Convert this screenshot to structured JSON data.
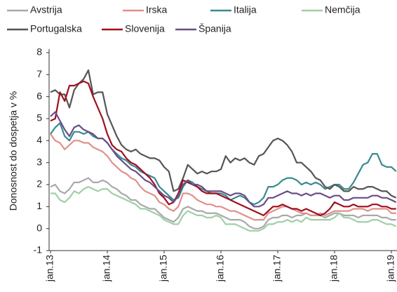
{
  "chart_data": {
    "type": "line",
    "y_label": "Donosnost do dospetja v %",
    "categories": [
      "jan.13",
      null,
      null,
      null,
      null,
      null,
      null,
      null,
      null,
      null,
      null,
      null,
      "jan.14",
      null,
      null,
      null,
      null,
      null,
      null,
      null,
      null,
      null,
      null,
      null,
      "jan.15",
      null,
      null,
      null,
      null,
      null,
      null,
      null,
      null,
      null,
      null,
      null,
      "jan.16",
      null,
      null,
      null,
      null,
      null,
      null,
      null,
      null,
      null,
      null,
      null,
      "jan.17",
      null,
      null,
      null,
      null,
      null,
      null,
      null,
      null,
      null,
      null,
      null,
      "jan.18",
      null,
      null,
      null,
      null,
      null,
      null,
      null,
      null,
      null,
      null,
      null,
      "jan.19",
      null
    ],
    "ylim": [
      -1,
      8
    ],
    "yticks": [
      -1,
      0,
      1,
      2,
      3,
      4,
      5,
      6,
      7,
      8
    ],
    "series": [
      {
        "name": "Avstrija",
        "color": "#a9a9a9",
        "values": [
          1.9,
          2.0,
          1.7,
          1.6,
          1.8,
          2.1,
          2.1,
          2.2,
          2.3,
          2.1,
          2.1,
          2.2,
          2.1,
          1.9,
          1.8,
          1.6,
          1.5,
          1.3,
          1.3,
          1.1,
          1.0,
          0.9,
          0.9,
          0.7,
          0.5,
          0.4,
          0.3,
          0.5,
          0.9,
          1.0,
          0.9,
          0.8,
          0.8,
          0.7,
          0.7,
          0.7,
          0.6,
          0.5,
          0.4,
          0.4,
          0.4,
          0.3,
          0.1,
          0.0,
          0.0,
          0.1,
          0.4,
          0.5,
          0.5,
          0.6,
          0.6,
          0.5,
          0.6,
          0.6,
          0.7,
          0.6,
          0.6,
          0.6,
          0.5,
          0.6,
          0.7,
          0.7,
          0.6,
          0.6,
          0.6,
          0.5,
          0.6,
          0.6,
          0.6,
          0.6,
          0.5,
          0.5,
          0.4,
          0.4
        ]
      },
      {
        "name": "Irska",
        "color": "#e0908a",
        "values": [
          4.3,
          4.0,
          3.9,
          3.6,
          3.8,
          4.0,
          4.0,
          3.9,
          3.9,
          3.7,
          3.6,
          3.5,
          3.3,
          3.0,
          2.8,
          2.6,
          2.5,
          2.3,
          2.2,
          1.9,
          1.7,
          1.6,
          1.5,
          1.2,
          1.1,
          0.9,
          0.8,
          1.0,
          1.6,
          1.6,
          1.5,
          1.3,
          1.2,
          1.1,
          1.1,
          1.0,
          1.0,
          0.9,
          0.8,
          0.8,
          0.7,
          0.6,
          0.5,
          0.4,
          0.4,
          0.4,
          0.7,
          0.8,
          0.9,
          1.0,
          1.0,
          0.9,
          0.8,
          0.7,
          0.7,
          0.6,
          0.6,
          0.7,
          0.6,
          0.7,
          0.8,
          0.8,
          0.8,
          0.8,
          0.9,
          0.9,
          0.9,
          0.8,
          0.9,
          0.9,
          0.9,
          0.9,
          0.7,
          0.7
        ]
      },
      {
        "name": "Italija",
        "color": "#3a8a8f",
        "values": [
          4.3,
          4.6,
          4.8,
          4.2,
          4.0,
          4.4,
          4.4,
          4.3,
          4.4,
          4.2,
          4.1,
          4.1,
          3.9,
          3.6,
          3.4,
          3.2,
          3.1,
          2.9,
          2.8,
          2.6,
          2.5,
          2.4,
          2.3,
          1.9,
          1.7,
          1.5,
          1.3,
          1.4,
          1.9,
          2.2,
          2.1,
          1.9,
          1.8,
          1.7,
          1.6,
          1.6,
          1.6,
          1.5,
          1.3,
          1.4,
          1.5,
          1.4,
          1.2,
          1.1,
          1.2,
          1.4,
          1.9,
          1.9,
          2.0,
          2.2,
          2.3,
          2.3,
          2.2,
          2.0,
          2.1,
          2.0,
          2.1,
          2.0,
          1.8,
          1.9,
          2.0,
          2.0,
          1.8,
          1.8,
          2.1,
          2.5,
          2.9,
          3.0,
          3.4,
          3.4,
          2.9,
          2.8,
          2.8,
          2.6
        ]
      },
      {
        "name": "Nemčija",
        "color": "#9fd0a5",
        "values": [
          1.6,
          1.6,
          1.3,
          1.2,
          1.4,
          1.7,
          1.6,
          1.8,
          1.9,
          1.8,
          1.7,
          1.8,
          1.8,
          1.6,
          1.5,
          1.4,
          1.3,
          1.2,
          1.1,
          0.9,
          0.9,
          0.8,
          0.7,
          0.6,
          0.4,
          0.3,
          0.2,
          0.2,
          0.6,
          0.8,
          0.7,
          0.6,
          0.6,
          0.5,
          0.5,
          0.6,
          0.5,
          0.2,
          0.2,
          0.2,
          0.1,
          0.0,
          -0.1,
          -0.1,
          -0.1,
          0.0,
          0.2,
          0.2,
          0.3,
          0.3,
          0.4,
          0.3,
          0.4,
          0.3,
          0.5,
          0.4,
          0.4,
          0.4,
          0.4,
          0.4,
          0.5,
          0.7,
          0.5,
          0.5,
          0.4,
          0.3,
          0.3,
          0.3,
          0.4,
          0.4,
          0.3,
          0.2,
          0.2,
          0.1
        ]
      },
      {
        "name": "Portugalska",
        "color": "#555555",
        "values": [
          6.2,
          6.3,
          6.1,
          6.1,
          5.5,
          6.3,
          6.6,
          6.8,
          7.2,
          6.1,
          6.2,
          6.2,
          5.2,
          4.7,
          4.2,
          3.8,
          3.6,
          3.5,
          3.6,
          3.4,
          3.3,
          3.2,
          3.2,
          3.1,
          2.8,
          2.6,
          1.7,
          1.8,
          2.3,
          2.9,
          2.7,
          2.5,
          2.6,
          2.5,
          2.6,
          2.6,
          2.7,
          3.3,
          3.0,
          3.2,
          3.1,
          3.2,
          3.0,
          2.9,
          3.3,
          3.4,
          3.7,
          4.0,
          4.1,
          4.0,
          3.8,
          3.5,
          3.0,
          3.0,
          2.8,
          2.6,
          2.3,
          2.2,
          1.9,
          1.8,
          2.0,
          1.9,
          1.7,
          1.7,
          1.9,
          1.8,
          1.8,
          1.9,
          1.9,
          1.8,
          1.7,
          1.7,
          1.5,
          1.4
        ]
      },
      {
        "name": "Slovenija",
        "color": "#a00f1e",
        "values": [
          4.9,
          5.0,
          6.2,
          5.8,
          6.5,
          6.5,
          6.6,
          6.7,
          6.6,
          6.0,
          5.5,
          5.0,
          4.3,
          3.8,
          3.6,
          3.5,
          3.2,
          3.0,
          2.9,
          2.7,
          2.5,
          2.3,
          2.0,
          1.6,
          1.4,
          1.1,
          1.2,
          1.6,
          2.2,
          2.1,
          2.0,
          1.9,
          1.7,
          1.6,
          1.6,
          1.6,
          1.5,
          1.4,
          1.3,
          1.2,
          1.1,
          1.0,
          0.9,
          0.8,
          0.7,
          0.6,
          0.8,
          1.0,
          1.0,
          1.1,
          1.0,
          0.9,
          0.9,
          0.8,
          0.9,
          0.8,
          0.7,
          0.6,
          0.7,
          0.9,
          1.2,
          1.1,
          1.0,
          1.0,
          1.1,
          1.0,
          1.0,
          1.0,
          1.1,
          1.1,
          1.0,
          1.0,
          0.9,
          0.9
        ]
      },
      {
        "name": "Španija",
        "color": "#6a4d87",
        "values": [
          5.1,
          5.3,
          4.9,
          4.5,
          4.2,
          4.6,
          4.7,
          4.5,
          4.4,
          4.3,
          4.1,
          4.1,
          3.9,
          3.6,
          3.3,
          3.1,
          2.9,
          2.7,
          2.6,
          2.4,
          2.2,
          2.1,
          1.9,
          1.7,
          1.5,
          1.4,
          1.2,
          1.5,
          2.0,
          2.2,
          2.0,
          2.0,
          1.9,
          1.7,
          1.7,
          1.7,
          1.7,
          1.6,
          1.5,
          1.6,
          1.6,
          1.5,
          1.2,
          1.0,
          1.0,
          1.1,
          1.4,
          1.4,
          1.5,
          1.6,
          1.7,
          1.6,
          1.6,
          1.5,
          1.6,
          1.5,
          1.6,
          1.6,
          1.5,
          1.4,
          1.5,
          1.5,
          1.3,
          1.3,
          1.4,
          1.4,
          1.4,
          1.4,
          1.5,
          1.5,
          1.4,
          1.4,
          1.3,
          1.2
        ]
      }
    ]
  }
}
